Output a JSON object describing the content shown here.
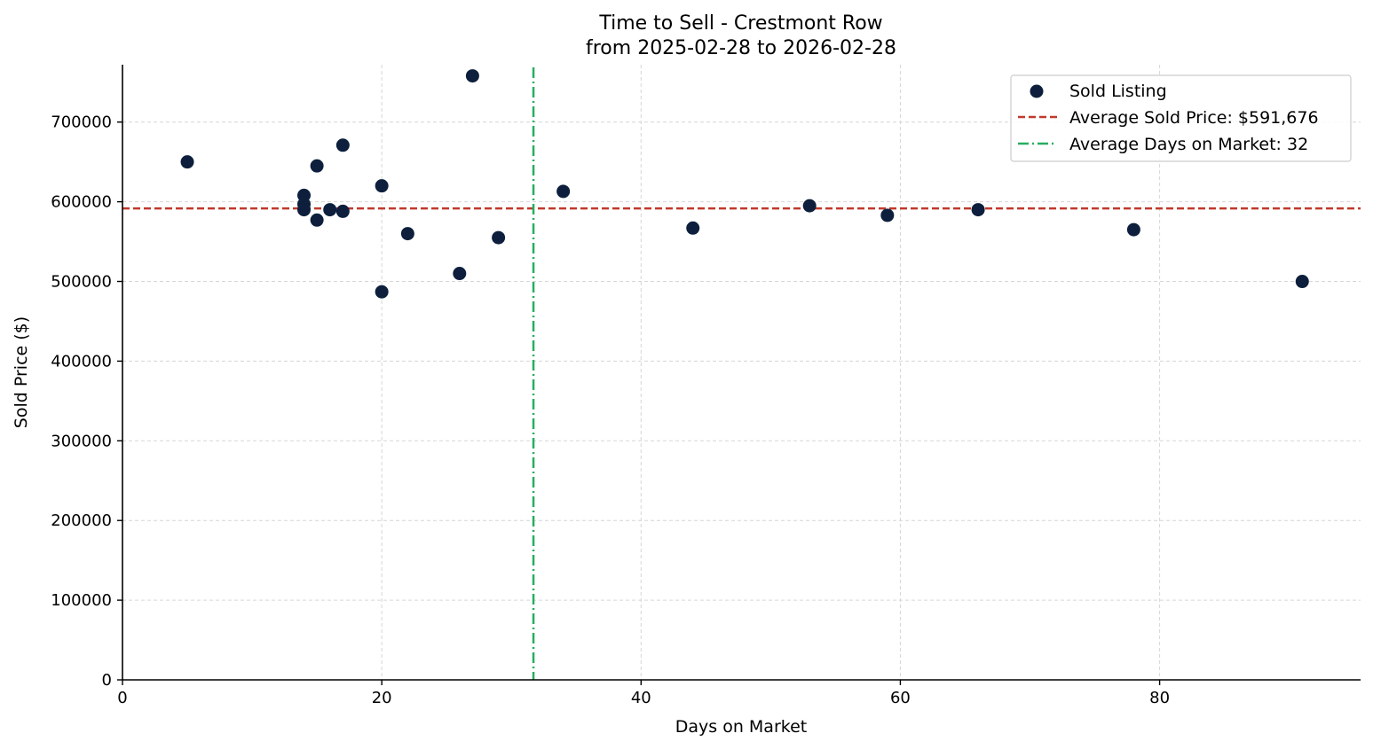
{
  "chart_data": {
    "type": "scatter",
    "title": [
      "Time to Sell - Crestmont Row",
      "from 2025-02-28 to 2026-02-28"
    ],
    "xlabel": "Days on Market",
    "ylabel": "Sold Price ($)",
    "xlim": [
      0,
      95.5
    ],
    "ylim": [
      0,
      772000
    ],
    "xticks": [
      0,
      20,
      40,
      60,
      80
    ],
    "yticks": [
      0,
      100000,
      200000,
      300000,
      400000,
      500000,
      600000,
      700000
    ],
    "grid": true,
    "legend_position": "top-right",
    "colors": {
      "points": "#0d1f3c",
      "avg_price_line": "#c0392b",
      "avg_days_line": "#27ae60",
      "grid": "#d6d6d6"
    },
    "series": [
      {
        "name": "Sold Listing",
        "points": [
          {
            "x": 5,
            "y": 650000
          },
          {
            "x": 14,
            "y": 608000
          },
          {
            "x": 14,
            "y": 597000
          },
          {
            "x": 14,
            "y": 590000
          },
          {
            "x": 15,
            "y": 645000
          },
          {
            "x": 15,
            "y": 577000
          },
          {
            "x": 16,
            "y": 590000
          },
          {
            "x": 17,
            "y": 671000
          },
          {
            "x": 17,
            "y": 588000
          },
          {
            "x": 20,
            "y": 620000
          },
          {
            "x": 20,
            "y": 487000
          },
          {
            "x": 22,
            "y": 560000
          },
          {
            "x": 26,
            "y": 510000
          },
          {
            "x": 27,
            "y": 758000
          },
          {
            "x": 29,
            "y": 555000
          },
          {
            "x": 34,
            "y": 613000
          },
          {
            "x": 44,
            "y": 567000
          },
          {
            "x": 53,
            "y": 595000
          },
          {
            "x": 59,
            "y": 583000
          },
          {
            "x": 66,
            "y": 590000
          },
          {
            "x": 78,
            "y": 565000
          },
          {
            "x": 91,
            "y": 500000
          }
        ]
      }
    ],
    "reference_lines": [
      {
        "name": "Average Sold Price: $591,676",
        "orientation": "horizontal",
        "value": 591676,
        "style": "dashed"
      },
      {
        "name": "Average Days on Market: 32",
        "orientation": "vertical",
        "value": 31.7,
        "style": "dashdot"
      }
    ]
  }
}
